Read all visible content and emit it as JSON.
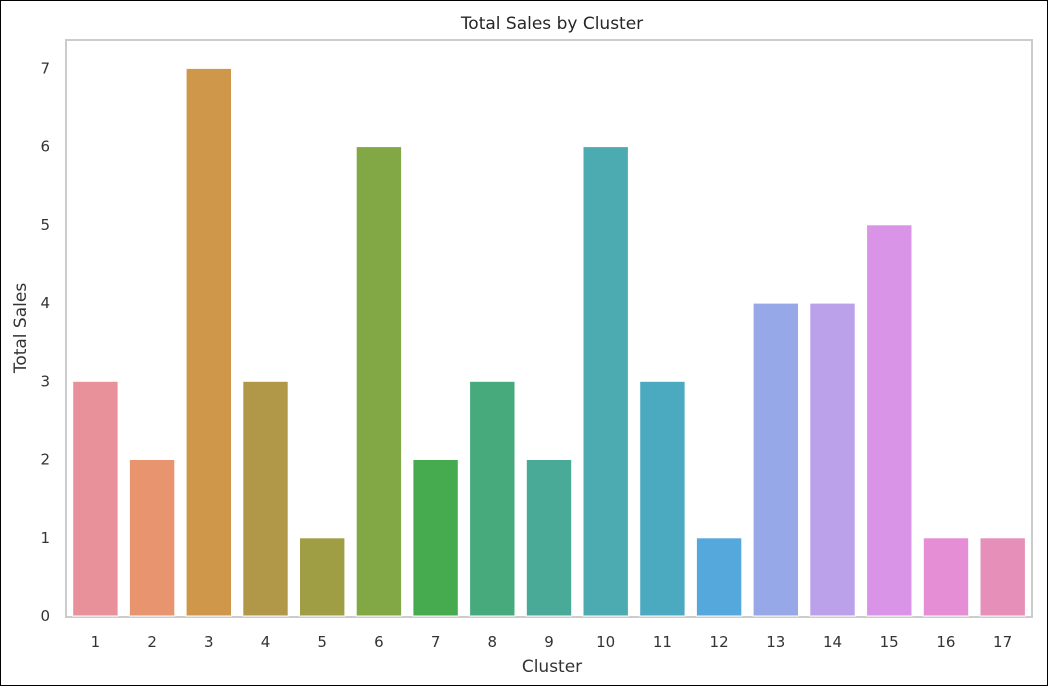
{
  "chart_data": {
    "type": "bar",
    "title": "Total Sales by Cluster",
    "xlabel": "Cluster",
    "ylabel": "Total Sales",
    "categories": [
      "1",
      "2",
      "3",
      "4",
      "5",
      "6",
      "7",
      "8",
      "9",
      "10",
      "11",
      "12",
      "13",
      "14",
      "15",
      "16",
      "17"
    ],
    "values": [
      3,
      2,
      7,
      3,
      1,
      6,
      2,
      3,
      2,
      6,
      3,
      1,
      4,
      4,
      5,
      1,
      1
    ],
    "colors": [
      "#e8919a",
      "#e8946f",
      "#cf9749",
      "#b09848",
      "#9f9e44",
      "#82a745",
      "#46ab4e",
      "#47aa7d",
      "#49aa97",
      "#4babb0",
      "#4caac0",
      "#54a8db",
      "#97a8e8",
      "#baa1e9",
      "#d994e8",
      "#e58ed6",
      "#e68fb9"
    ],
    "ylim": [
      0,
      7.35
    ],
    "yticks": [
      0,
      1,
      2,
      3,
      4,
      5,
      6,
      7
    ],
    "grid": false,
    "legend": "none"
  }
}
